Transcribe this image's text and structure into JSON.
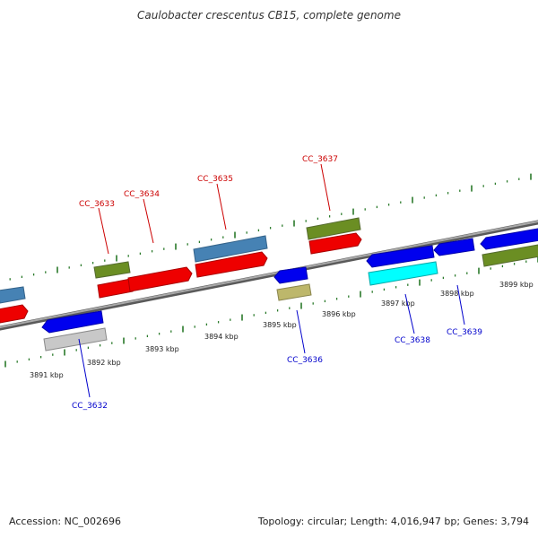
{
  "title": "Caulobacter crescentus CB15, complete genome",
  "footer": {
    "accession": "Accession: NC_002696",
    "stats": "Topology: circular; Length: 4,016,947 bp; Genes: 3,794"
  },
  "colors": {
    "backbone": "#808080",
    "tick": "#2a7a2a",
    "label_forward": "#cc0000",
    "label_reverse": "#0000cc"
  },
  "kbp_labels": [
    "3891 kbp",
    "3892 kbp",
    "3893 kbp",
    "3894 kbp",
    "3895 kbp",
    "3896 kbp",
    "3897 kbp",
    "3898 kbp",
    "3899 kbp"
  ],
  "gene_labels": [
    {
      "id": "CC_3632",
      "strand": "reverse"
    },
    {
      "id": "CC_3633",
      "strand": "forward"
    },
    {
      "id": "CC_3634",
      "strand": "forward"
    },
    {
      "id": "CC_3635",
      "strand": "forward"
    },
    {
      "id": "CC_3636",
      "strand": "reverse"
    },
    {
      "id": "CC_3637",
      "strand": "forward"
    },
    {
      "id": "CC_3638",
      "strand": "reverse"
    },
    {
      "id": "CC_3639",
      "strand": "reverse"
    }
  ]
}
